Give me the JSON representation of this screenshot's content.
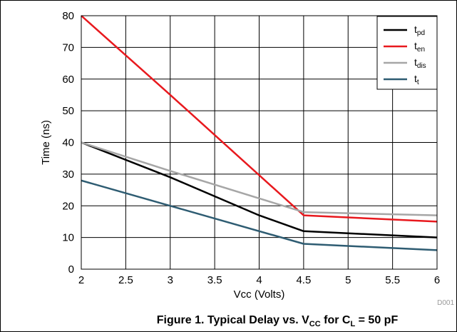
{
  "caption": {
    "prefix": "Figure 1. Typical Delay vs. V",
    "sub1": "CC",
    "middle": " for C",
    "sub2": "L",
    "suffix": " = 50 pF"
  },
  "figure_code": "D001",
  "chart_data": {
    "type": "line",
    "xlabel": "Vcc (Volts)",
    "ylabel": "Time (ns)",
    "xlim": [
      2,
      6
    ],
    "ylim": [
      0,
      80
    ],
    "x_ticks": [
      "2",
      "2.5",
      "3",
      "3.5",
      "4",
      "4.5",
      "5",
      "5.5",
      "6"
    ],
    "y_ticks": [
      "0",
      "10",
      "20",
      "30",
      "40",
      "50",
      "60",
      "70",
      "80"
    ],
    "grid": true,
    "legend_position": "top-right",
    "series": [
      {
        "name_main": "t",
        "name_sub": "pd",
        "color": "#000000",
        "points": [
          [
            2,
            40
          ],
          [
            3,
            29
          ],
          [
            4,
            17
          ],
          [
            4.5,
            12
          ],
          [
            6,
            10
          ]
        ]
      },
      {
        "name_main": "t",
        "name_sub": "en",
        "color": "#e8191e",
        "points": [
          [
            2,
            80
          ],
          [
            3,
            55
          ],
          [
            4.5,
            17
          ],
          [
            6,
            15
          ]
        ]
      },
      {
        "name_main": "t",
        "name_sub": "dis",
        "color": "#a6a6a6",
        "points": [
          [
            2,
            40
          ],
          [
            3,
            31
          ],
          [
            4.5,
            18
          ],
          [
            6,
            17
          ]
        ]
      },
      {
        "name_main": "t",
        "name_sub": "t",
        "color": "#2e5c72",
        "points": [
          [
            2,
            28
          ],
          [
            3,
            20
          ],
          [
            4.5,
            8
          ],
          [
            6,
            6
          ]
        ]
      }
    ]
  }
}
